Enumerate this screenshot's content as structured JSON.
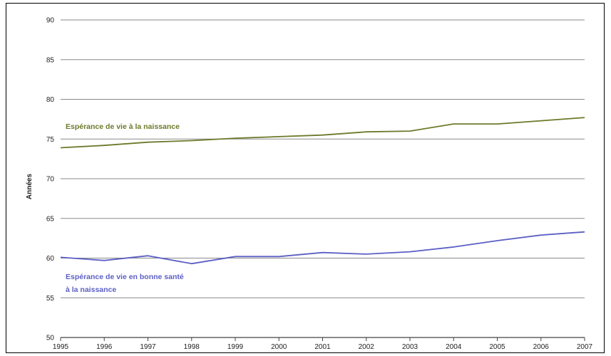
{
  "chart_data": {
    "type": "line",
    "title": "",
    "xlabel": "",
    "ylabel": "Années",
    "ylim": [
      50,
      90
    ],
    "yticks": [
      50,
      55,
      60,
      65,
      70,
      75,
      80,
      85,
      90
    ],
    "x_tick_labels": [
      "1995",
      "1996",
      "1997",
      "1998",
      "1999",
      "2000",
      "2001",
      "2002",
      "2003",
      "2004",
      "2005",
      "2006",
      "2007"
    ],
    "grid": true,
    "series": [
      {
        "name": "Espérance de vie à la naissance",
        "color": "#6b7a2a",
        "values": [
          73.9,
          74.2,
          74.6,
          74.8,
          75.1,
          75.3,
          75.5,
          75.9,
          76.0,
          76.9,
          76.9,
          77.3,
          77.7
        ]
      },
      {
        "name": "Espérance de vie en bonne santé à la naissance",
        "name_lines": [
          "Espérance de vie en bonne santé",
          "à la naissance"
        ],
        "color": "#5b5fc4",
        "values": [
          60.1,
          59.7,
          60.3,
          59.3,
          60.2,
          60.2,
          60.7,
          60.5,
          60.8,
          61.4,
          62.2,
          62.9,
          63.3
        ]
      }
    ]
  }
}
